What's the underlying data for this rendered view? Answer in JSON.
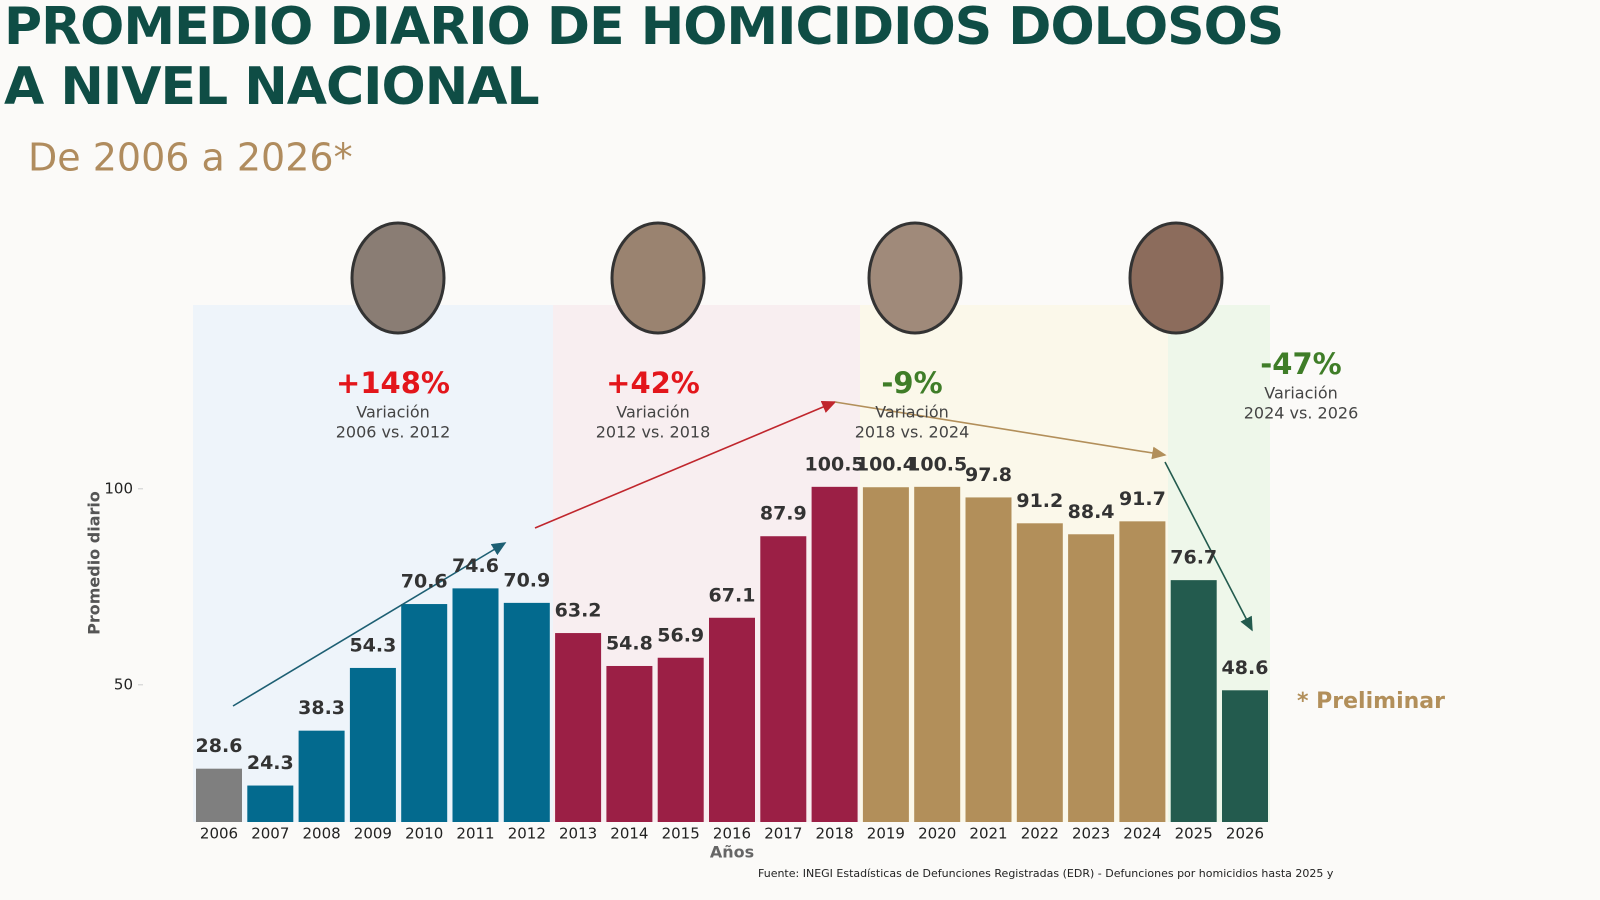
{
  "chart_data": {
    "type": "bar",
    "title": [
      "PROMEDIO DIARIO DE HOMICIDIOS DOLOSOS",
      "A NIVEL NACIONAL"
    ],
    "subtitle": "De 2006 a 2026*",
    "y_label": "Promedio diario",
    "x_label": "Años",
    "categories": [
      "2006",
      "2007",
      "2008",
      "2009",
      "2010",
      "2011",
      "2012",
      "2013",
      "2014",
      "2015",
      "2016",
      "2017",
      "2018",
      "2019",
      "2020",
      "2021",
      "2022",
      "2023",
      "2024",
      "2025",
      "2026"
    ],
    "values": [
      28.6,
      24.3,
      38.3,
      54.3,
      70.6,
      74.6,
      70.9,
      63.2,
      54.8,
      56.9,
      67.1,
      87.9,
      100.5,
      100.4,
      100.5,
      97.8,
      91.2,
      88.4,
      91.7,
      76.7,
      48.6
    ],
    "colors": [
      "#7f7f7f",
      "#036a8e",
      "#036a8e",
      "#036a8e",
      "#036a8e",
      "#036a8e",
      "#036a8e",
      "#9b1f45",
      "#9b1f45",
      "#9b1f45",
      "#9b1f45",
      "#9b1f45",
      "#9b1f45",
      "#b28f5a",
      "#b28f5a",
      "#b28f5a",
      "#b28f5a",
      "#b28f5a",
      "#b28f5a",
      "#235b4e",
      "#235b4e"
    ],
    "ylim": [
      15,
      110
    ],
    "yticks": [
      50,
      100
    ],
    "annotations": [
      {
        "label": "+148%",
        "text": "Variación",
        "period": "2006 vs. 2012",
        "color": "#e3161b"
      },
      {
        "label": "+42%",
        "text": "Variación",
        "period": "2012 vs. 2018",
        "color": "#e3161b"
      },
      {
        "label": "-9%",
        "text": "Variación",
        "period": "2018 vs. 2024",
        "color": "#3f7d28"
      },
      {
        "label": "-47%",
        "text": "Variación",
        "period": "2024 vs. 2026",
        "color": "#3f7d28"
      }
    ],
    "note": "* Preliminar",
    "source": "Fuente: INEGI Estadísticas de Defunciones Registradas (EDR) - Defunciones por homicidios hasta 2025 y"
  }
}
